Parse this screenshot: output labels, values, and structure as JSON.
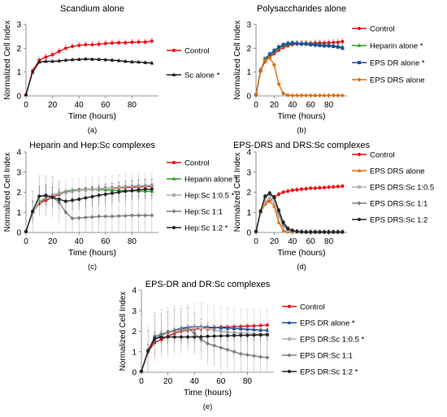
{
  "colors": {
    "Control": "#e8141b",
    "Sc alone *": "#1a1a1a",
    "Heparin alone *": "#2ca02c",
    "EPS DR alone *": "#1f4e9c",
    "EPS DRS alone": "#e36c0a",
    "Hep:Sc 1:0.5 *": "#b0b0b0",
    "Hep:Sc 1:1": "#7f7f7f",
    "Hep:Sc 1:2 *": "#262626",
    "EPS DRS:Sc 1:0.5": "#b0b0b0",
    "EPS DRS:Sc 1:1": "#7f7f7f",
    "EPS DRS:Sc 1:2": "#262626",
    "EPS DR:Sc 1:0.5 *": "#b0b0b0",
    "EPS DR:Sc 1:1": "#7f7f7f",
    "EPS DR:Sc 1:2 *": "#262626"
  },
  "chart_data": [
    {
      "type": "line",
      "title": "Scandium alone",
      "panel_label": "(a)",
      "xlabel": "Time (hours)",
      "ylabel": "Normalized Cell Index",
      "xlim": [
        0,
        100
      ],
      "ylim": [
        0,
        3
      ],
      "xticks": [
        0,
        20,
        40,
        60,
        80
      ],
      "yticks": [
        0,
        1,
        2,
        3
      ],
      "grid": false,
      "legend_position": "right",
      "x": [
        0,
        5,
        10,
        15,
        20,
        25,
        30,
        35,
        40,
        45,
        50,
        55,
        60,
        65,
        70,
        75,
        80,
        85,
        90,
        95
      ],
      "series": [
        {
          "name": "Control",
          "values": [
            0.05,
            1.05,
            1.5,
            1.63,
            1.73,
            1.87,
            2.0,
            2.08,
            2.12,
            2.15,
            2.15,
            2.17,
            2.2,
            2.22,
            2.23,
            2.23,
            2.25,
            2.26,
            2.26,
            2.3
          ],
          "error": 0.12
        },
        {
          "name": "Sc alone *",
          "values": [
            0.05,
            1.0,
            1.42,
            1.45,
            1.45,
            1.47,
            1.5,
            1.52,
            1.53,
            1.55,
            1.54,
            1.53,
            1.52,
            1.5,
            1.48,
            1.45,
            1.43,
            1.42,
            1.4,
            1.38
          ],
          "error": 0.05
        }
      ]
    },
    {
      "type": "line",
      "title": "Polysaccharides alone",
      "panel_label": "(b)",
      "xlabel": "Time (hours)",
      "ylabel": "Normalized Cell Index",
      "xlim": [
        0,
        100
      ],
      "ylim": [
        0,
        3
      ],
      "xticks": [
        0,
        20,
        40,
        60,
        80
      ],
      "yticks": [
        0,
        1,
        2,
        3
      ],
      "grid": false,
      "legend_position": "right",
      "x": [
        0,
        5,
        10,
        15,
        20,
        25,
        30,
        35,
        40,
        45,
        50,
        55,
        60,
        65,
        70,
        75,
        80,
        85,
        90,
        95
      ],
      "series": [
        {
          "name": "Control",
          "values": [
            0.05,
            1.05,
            1.45,
            1.62,
            1.78,
            1.92,
            2.03,
            2.1,
            2.15,
            2.18,
            2.18,
            2.2,
            2.2,
            2.22,
            2.22,
            2.22,
            2.23,
            2.24,
            2.25,
            2.28
          ],
          "error": 0.12
        },
        {
          "name": "Heparin alone *",
          "values": [
            0.05,
            1.05,
            1.5,
            1.7,
            1.85,
            2.0,
            2.1,
            2.15,
            2.18,
            2.2,
            2.2,
            2.2,
            2.18,
            2.17,
            2.15,
            2.13,
            2.12,
            2.1,
            2.08,
            2.05
          ],
          "error": 0.1
        },
        {
          "name": "EPS DR alone *",
          "values": [
            0.05,
            1.05,
            1.55,
            1.75,
            1.9,
            2.05,
            2.15,
            2.2,
            2.22,
            2.2,
            2.18,
            2.18,
            2.15,
            2.13,
            2.12,
            2.1,
            2.1,
            2.08,
            2.05,
            2.0
          ],
          "error": 0.1
        },
        {
          "name": "EPS DRS alone",
          "values": [
            0.05,
            1.05,
            1.5,
            1.6,
            1.3,
            0.5,
            0.1,
            0.03,
            0.02,
            0.02,
            0.02,
            0.02,
            0.02,
            0.02,
            0.02,
            0.02,
            0.02,
            0.02,
            0.02,
            0.02
          ],
          "error": 0.05
        }
      ]
    },
    {
      "type": "line",
      "title": "Heparin and Hep:Sc complexes",
      "panel_label": "(c)",
      "xlabel": "Time (hours)",
      "ylabel": "Normalized Cell Index",
      "xlim": [
        0,
        100
      ],
      "ylim": [
        0,
        4
      ],
      "xticks": [
        0,
        20,
        40,
        60,
        80
      ],
      "yticks": [
        0,
        1,
        2,
        3,
        4
      ],
      "grid": false,
      "legend_position": "right",
      "x": [
        0,
        5,
        10,
        15,
        20,
        25,
        30,
        35,
        40,
        45,
        50,
        55,
        60,
        65,
        70,
        75,
        80,
        85,
        90,
        95
      ],
      "series": [
        {
          "name": "Control",
          "values": [
            0.05,
            1.0,
            1.45,
            1.6,
            1.75,
            1.9,
            2.0,
            2.05,
            2.1,
            2.12,
            2.15,
            2.17,
            2.2,
            2.2,
            2.22,
            2.23,
            2.25,
            2.26,
            2.28,
            2.3
          ],
          "error": 0.1
        },
        {
          "name": "Heparin alone *",
          "values": [
            0.05,
            1.0,
            1.5,
            1.7,
            1.85,
            1.95,
            2.05,
            2.1,
            2.12,
            2.15,
            2.15,
            2.13,
            2.12,
            2.1,
            2.1,
            2.08,
            2.08,
            2.06,
            2.05,
            2.05
          ],
          "error": 0.1
        },
        {
          "name": "Hep:Sc 1:0.5 *",
          "values": [
            0.05,
            1.0,
            1.55,
            1.75,
            1.85,
            1.95,
            2.0,
            2.05,
            2.1,
            2.12,
            2.15,
            2.17,
            2.2,
            2.22,
            2.25,
            2.28,
            2.3,
            2.32,
            2.33,
            2.35
          ],
          "error": 0.6
        },
        {
          "name": "Hep:Sc 1:1",
          "values": [
            0.05,
            1.05,
            1.8,
            1.8,
            1.75,
            1.5,
            1.0,
            0.7,
            0.72,
            0.75,
            0.77,
            0.8,
            0.8,
            0.8,
            0.82,
            0.83,
            0.85,
            0.85,
            0.85,
            0.85
          ],
          "error": 1.0
        },
        {
          "name": "Hep:Sc 1:2 *",
          "values": [
            0.05,
            1.05,
            1.8,
            1.85,
            1.75,
            1.65,
            1.55,
            1.6,
            1.65,
            1.72,
            1.78,
            1.85,
            1.9,
            1.95,
            2.0,
            2.05,
            2.08,
            2.12,
            2.15,
            2.15
          ],
          "error": 0.5
        }
      ]
    },
    {
      "type": "line",
      "title": "EPS-DRS and DRS:Sc complexes",
      "panel_label": "(d)",
      "xlabel": "Time (hours)",
      "ylabel": "Normalized Cell Index",
      "xlim": [
        0,
        100
      ],
      "ylim": [
        0,
        4
      ],
      "xticks": [
        0,
        20,
        40,
        60,
        80
      ],
      "yticks": [
        0,
        1,
        2,
        3,
        4
      ],
      "grid": false,
      "legend_position": "right",
      "x": [
        0,
        5,
        10,
        15,
        20,
        25,
        30,
        35,
        40,
        45,
        50,
        55,
        60,
        65,
        70,
        75,
        80,
        85,
        90,
        95
      ],
      "series": [
        {
          "name": "Control",
          "values": [
            0.05,
            1.0,
            1.45,
            1.6,
            1.75,
            1.9,
            2.0,
            2.05,
            2.1,
            2.12,
            2.15,
            2.17,
            2.2,
            2.2,
            2.22,
            2.23,
            2.25,
            2.26,
            2.28,
            2.3
          ],
          "error": 0.1
        },
        {
          "name": "EPS DRS alone",
          "values": [
            0.05,
            1.0,
            1.4,
            1.55,
            1.3,
            0.5,
            0.1,
            0.03,
            0.02,
            0.02,
            0.02,
            0.02,
            0.02,
            0.02,
            0.02,
            0.02,
            0.02,
            0.02,
            0.02,
            0.02
          ],
          "error": 0.05
        },
        {
          "name": "EPS DRS:Sc 1:0.5",
          "values": [
            0.05,
            1.0,
            1.55,
            1.7,
            1.5,
            0.8,
            0.3,
            0.1,
            0.05,
            0.03,
            0.02,
            0.02,
            0.02,
            0.02,
            0.02,
            0.02,
            0.02,
            0.02,
            0.02,
            0.02
          ],
          "error": 0.1
        },
        {
          "name": "EPS DRS:Sc 1:1",
          "values": [
            0.05,
            1.05,
            1.75,
            1.9,
            1.7,
            1.0,
            0.4,
            0.15,
            0.08,
            0.05,
            0.03,
            0.02,
            0.02,
            0.02,
            0.02,
            0.02,
            0.02,
            0.02,
            0.02,
            0.02
          ],
          "error": 0.1
        },
        {
          "name": "EPS DRS:Sc 1:2",
          "values": [
            0.05,
            1.05,
            1.8,
            1.95,
            1.75,
            1.1,
            0.5,
            0.2,
            0.1,
            0.05,
            0.03,
            0.02,
            0.02,
            0.02,
            0.02,
            0.02,
            0.02,
            0.02,
            0.02,
            0.02
          ],
          "error": 0.1
        }
      ]
    },
    {
      "type": "line",
      "title": "EPS-DR and DR:Sc complexes",
      "panel_label": "(e)",
      "xlabel": "Time (hours)",
      "ylabel": "Normalized Cell Index",
      "xlim": [
        0,
        100
      ],
      "ylim": [
        0,
        4
      ],
      "xticks": [
        0,
        20,
        40,
        60,
        80
      ],
      "yticks": [
        0,
        1,
        2,
        3,
        4
      ],
      "grid": false,
      "legend_position": "right",
      "x": [
        0,
        5,
        10,
        15,
        20,
        25,
        30,
        35,
        40,
        45,
        50,
        55,
        60,
        65,
        70,
        75,
        80,
        85,
        90,
        95
      ],
      "series": [
        {
          "name": "Control",
          "values": [
            0.05,
            1.0,
            1.45,
            1.6,
            1.75,
            1.9,
            2.0,
            2.05,
            2.1,
            2.12,
            2.15,
            2.17,
            2.2,
            2.2,
            2.22,
            2.23,
            2.25,
            2.26,
            2.28,
            2.3
          ],
          "error": 0.1
        },
        {
          "name": "EPS DR alone *",
          "values": [
            0.05,
            1.05,
            1.6,
            1.8,
            1.95,
            2.05,
            2.15,
            2.2,
            2.22,
            2.22,
            2.2,
            2.18,
            2.17,
            2.15,
            2.13,
            2.12,
            2.1,
            2.08,
            2.05,
            2.05
          ],
          "error": 0.1
        },
        {
          "name": "EPS DR:Sc 1:0.5 *",
          "values": [
            0.05,
            1.05,
            1.7,
            1.85,
            1.95,
            2.0,
            2.05,
            2.1,
            2.15,
            2.15,
            2.1,
            2.05,
            2.0,
            1.95,
            1.92,
            1.9,
            1.88,
            1.87,
            1.85,
            1.85
          ],
          "error": 1.2
        },
        {
          "name": "EPS DR:Sc 1:1",
          "values": [
            0.05,
            1.05,
            1.75,
            1.85,
            1.95,
            2.05,
            2.1,
            2.15,
            1.9,
            1.6,
            1.4,
            1.3,
            1.2,
            1.1,
            1.0,
            0.9,
            0.85,
            0.8,
            0.75,
            0.72
          ],
          "error": 1.0
        },
        {
          "name": "EPS DR:Sc 1:2 *",
          "values": [
            0.05,
            1.05,
            1.65,
            1.7,
            1.72,
            1.72,
            1.72,
            1.72,
            1.72,
            1.73,
            1.75,
            1.76,
            1.77,
            1.78,
            1.79,
            1.8,
            1.8,
            1.81,
            1.82,
            1.83
          ],
          "error": 0.3
        }
      ]
    }
  ]
}
